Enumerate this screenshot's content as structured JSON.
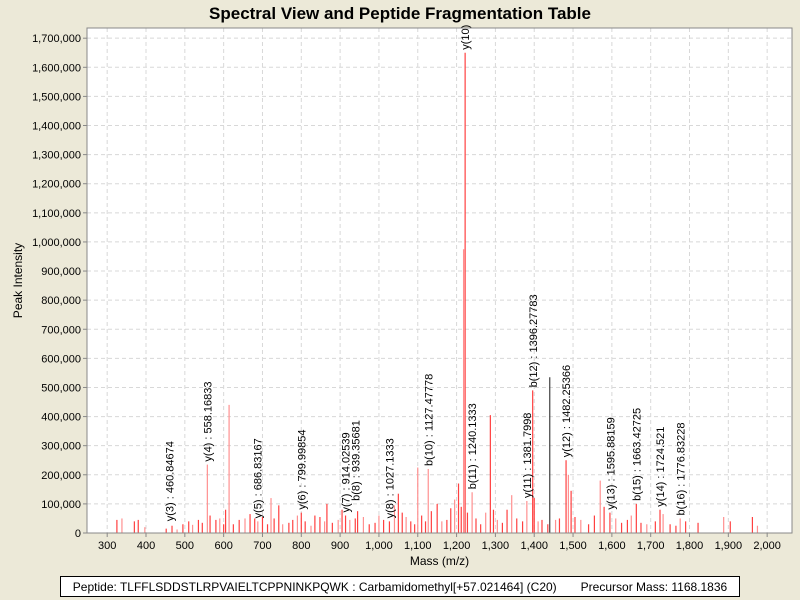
{
  "chart_data": {
    "type": "bar",
    "title": "Spectral View and Peptide Fragmentation Table",
    "xlabel": "Mass (m/z)",
    "ylabel": "Peak Intensity",
    "xlim": [
      248,
      2064
    ],
    "ylim": [
      0,
      1735000
    ],
    "xticks": [
      300,
      400,
      500,
      600,
      700,
      800,
      900,
      1000,
      1100,
      1200,
      1300,
      1400,
      1500,
      1600,
      1700,
      1800,
      1900,
      2000
    ],
    "xtick_labels": [
      "300",
      "400",
      "500",
      "600",
      "700",
      "800",
      "900",
      "1,000",
      "1,100",
      "1,200",
      "1,300",
      "1,400",
      "1,500",
      "1,600",
      "1,700",
      "1,800",
      "1,900",
      "2,000"
    ],
    "yticks": [
      0,
      100000,
      200000,
      300000,
      400000,
      500000,
      600000,
      700000,
      800000,
      900000,
      1000000,
      1100000,
      1200000,
      1300000,
      1400000,
      1500000,
      1600000,
      1700000
    ],
    "ytick_labels": [
      "0",
      "100,000",
      "200,000",
      "300,000",
      "400,000",
      "500,000",
      "600,000",
      "700,000",
      "800,000",
      "900,000",
      "1,000,000",
      "1,100,000",
      "1,200,000",
      "1,300,000",
      "1,400,000",
      "1,500,000",
      "1,600,000",
      "1,700,000"
    ],
    "grid": true,
    "colors": {
      "peak": "#ff4040",
      "peak_light": "#ff9090",
      "unannotated_major": "#404040"
    },
    "peaks": [
      [
        325,
        45000
      ],
      [
        338,
        50000
      ],
      [
        370,
        40000
      ],
      [
        380,
        45000
      ],
      [
        397,
        20000
      ],
      [
        452,
        15000
      ],
      [
        467,
        25000
      ],
      [
        480,
        12000
      ],
      [
        495,
        30000
      ],
      [
        510,
        40000
      ],
      [
        520,
        28000
      ],
      [
        535,
        45000
      ],
      [
        545,
        35000
      ],
      [
        558,
        235000
      ],
      [
        565,
        60000
      ],
      [
        580,
        45000
      ],
      [
        590,
        50000
      ],
      [
        600,
        30000
      ],
      [
        605,
        80000
      ],
      [
        614,
        440000
      ],
      [
        625,
        30000
      ],
      [
        640,
        45000
      ],
      [
        655,
        50000
      ],
      [
        668,
        65000
      ],
      [
        680,
        50000
      ],
      [
        688,
        40000
      ],
      [
        700,
        55000
      ],
      [
        713,
        30000
      ],
      [
        722,
        120000
      ],
      [
        730,
        50000
      ],
      [
        742,
        95000
      ],
      [
        752,
        30000
      ],
      [
        768,
        35000
      ],
      [
        778,
        45000
      ],
      [
        790,
        60000
      ],
      [
        800,
        70000
      ],
      [
        810,
        40000
      ],
      [
        825,
        25000
      ],
      [
        835,
        60000
      ],
      [
        848,
        55000
      ],
      [
        860,
        40000
      ],
      [
        866,
        100000
      ],
      [
        880,
        35000
      ],
      [
        895,
        45000
      ],
      [
        905,
        80000
      ],
      [
        914,
        60000
      ],
      [
        925,
        45000
      ],
      [
        939,
        50000
      ],
      [
        945,
        75000
      ],
      [
        960,
        55000
      ],
      [
        975,
        30000
      ],
      [
        990,
        35000
      ],
      [
        1000,
        60000
      ],
      [
        1012,
        45000
      ],
      [
        1027,
        40000
      ],
      [
        1040,
        95000
      ],
      [
        1050,
        135000
      ],
      [
        1060,
        70000
      ],
      [
        1070,
        55000
      ],
      [
        1082,
        40000
      ],
      [
        1092,
        30000
      ],
      [
        1100,
        225000
      ],
      [
        1110,
        60000
      ],
      [
        1120,
        40000
      ],
      [
        1127,
        220000
      ],
      [
        1135,
        75000
      ],
      [
        1150,
        100000
      ],
      [
        1162,
        40000
      ],
      [
        1175,
        45000
      ],
      [
        1185,
        85000
      ],
      [
        1195,
        115000
      ],
      [
        1205,
        170000
      ],
      [
        1212,
        90000
      ],
      [
        1218,
        975000
      ],
      [
        1222,
        1650000
      ],
      [
        1228,
        70000
      ],
      [
        1240,
        140000
      ],
      [
        1250,
        50000
      ],
      [
        1262,
        30000
      ],
      [
        1275,
        70000
      ],
      [
        1287,
        405000
      ],
      [
        1295,
        80000
      ],
      [
        1305,
        45000
      ],
      [
        1318,
        35000
      ],
      [
        1330,
        80000
      ],
      [
        1342,
        130000
      ],
      [
        1355,
        50000
      ],
      [
        1370,
        40000
      ],
      [
        1381,
        110000
      ],
      [
        1396,
        490000
      ],
      [
        1400,
        120000
      ],
      [
        1410,
        40000
      ],
      [
        1420,
        45000
      ],
      [
        1435,
        30000
      ],
      [
        1455,
        45000
      ],
      [
        1465,
        50000
      ],
      [
        1482,
        250000
      ],
      [
        1488,
        200000
      ],
      [
        1495,
        145000
      ],
      [
        1505,
        55000
      ],
      [
        1520,
        45000
      ],
      [
        1540,
        30000
      ],
      [
        1555,
        60000
      ],
      [
        1570,
        180000
      ],
      [
        1580,
        90000
      ],
      [
        1595,
        70000
      ],
      [
        1610,
        50000
      ],
      [
        1625,
        35000
      ],
      [
        1640,
        45000
      ],
      [
        1650,
        60000
      ],
      [
        1663,
        100000
      ],
      [
        1675,
        35000
      ],
      [
        1690,
        30000
      ],
      [
        1712,
        40000
      ],
      [
        1724,
        80000
      ],
      [
        1732,
        65000
      ],
      [
        1750,
        30000
      ],
      [
        1765,
        25000
      ],
      [
        1776,
        50000
      ],
      [
        1790,
        40000
      ],
      [
        1822,
        35000
      ],
      [
        1888,
        55000
      ],
      [
        1905,
        40000
      ],
      [
        1962,
        55000
      ],
      [
        1975,
        25000
      ]
    ],
    "unannotated_major_peaks": [
      [
        1440,
        535000
      ]
    ],
    "annotations": [
      {
        "mz": 460.84674,
        "intensity": 30000,
        "label": "y(3) : 460.84674"
      },
      {
        "mz": 558.16833,
        "intensity": 235000,
        "label": "y(4) : 558.16833"
      },
      {
        "mz": 686.83167,
        "intensity": 40000,
        "label": "y(5) : 686.83167"
      },
      {
        "mz": 799.99854,
        "intensity": 70000,
        "label": "y(6) : 799.99854"
      },
      {
        "mz": 914.02539,
        "intensity": 60000,
        "label": "y(7) : 914.02539"
      },
      {
        "mz": 939.35681,
        "intensity": 100000,
        "label": "b(8) : 939.35681"
      },
      {
        "mz": 1027.1333,
        "intensity": 40000,
        "label": "y(8) : 1027.1333"
      },
      {
        "mz": 1127.47778,
        "intensity": 220000,
        "label": "b(10) : 1127.47778"
      },
      {
        "mz": 1222,
        "intensity": 1650000,
        "label": "y(10)"
      },
      {
        "mz": 1240.1333,
        "intensity": 140000,
        "label": "b(11) : 1240.1333"
      },
      {
        "mz": 1381.7998,
        "intensity": 110000,
        "label": "y(11) : 1381.7998"
      },
      {
        "mz": 1396.27783,
        "intensity": 490000,
        "label": "b(12) : 1396.27783"
      },
      {
        "mz": 1482.25366,
        "intensity": 250000,
        "label": "y(12) : 1482.25366"
      },
      {
        "mz": 1595.88159,
        "intensity": 70000,
        "label": "y(13) : 1595.88159"
      },
      {
        "mz": 1663.42725,
        "intensity": 100000,
        "label": "b(15) : 1663.42725"
      },
      {
        "mz": 1724.521,
        "intensity": 80000,
        "label": "y(14) : 1724.521"
      },
      {
        "mz": 1776.83228,
        "intensity": 50000,
        "label": "b(16) : 1776.83228"
      }
    ]
  },
  "footer": {
    "peptide": "Peptide: TLFFLSDDSTLRPVAIELTCPPNINKPQWK : Carbamidomethyl[+57.021464] (C20)",
    "precursor": "Precursor Mass: 1168.1836"
  }
}
